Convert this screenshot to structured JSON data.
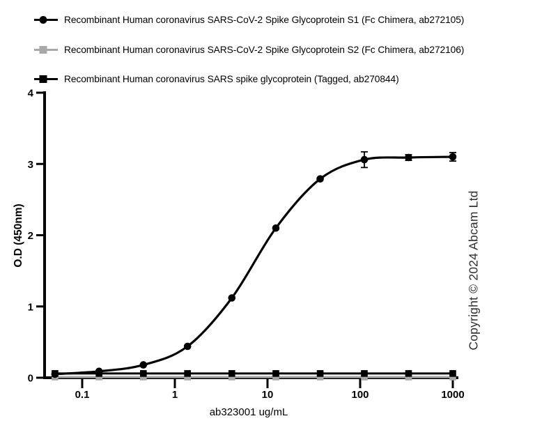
{
  "figure": {
    "copyright": "Copyright © 2024 Abcam Ltd"
  },
  "legend": {
    "items": [
      {
        "label": "Recombinant Human coronavirus SARS-CoV-2 Spike Glycoprotein S1 (Fc Chimera, ab272105)",
        "marker": "circle",
        "color": "#000000"
      },
      {
        "label": "Recombinant Human coronavirus SARS-CoV-2 Spike Glycoprotein S2 (Fc Chimera, ab272106)",
        "marker": "square",
        "color": "#a8a8a8"
      },
      {
        "label": "Recombinant Human coronavirus SARS spike glycoprotein (Tagged, ab270844)",
        "marker": "square",
        "color": "#000000"
      }
    ]
  },
  "chart_data": {
    "type": "line",
    "title": "",
    "xlabel": "ab323001 ug/mL",
    "ylabel": "O.D (450nm)",
    "x_scale": "log10",
    "xlim": [
      0.04,
      1100
    ],
    "ylim": [
      0,
      4
    ],
    "x_ticks": [
      0.1,
      1,
      10,
      100,
      1000
    ],
    "x_tick_labels": [
      "0.1",
      "1",
      "10",
      "100",
      "1000"
    ],
    "y_ticks": [
      0,
      1,
      2,
      3,
      4
    ],
    "grid": false,
    "legend_position": "top-left",
    "x": [
      0.0508,
      0.152,
      0.457,
      1.37,
      4.12,
      12.3,
      37,
      111,
      333,
      1000
    ],
    "series": [
      {
        "name": "Recombinant Human coronavirus SARS-CoV-2 Spike Glycoprotein S1 (Fc Chimera, ab272105)",
        "marker": "circle",
        "color": "#000000",
        "fit": "smooth",
        "values": [
          0.05,
          0.09,
          0.18,
          0.44,
          1.12,
          2.1,
          2.79,
          3.06,
          3.09,
          3.1
        ],
        "errors": [
          0,
          0,
          0,
          0,
          0,
          0,
          0,
          0.11,
          0.04,
          0.06
        ]
      },
      {
        "name": "Recombinant Human coronavirus SARS-CoV-2 Spike Glycoprotein S2 (Fc Chimera, ab272106)",
        "marker": "square",
        "color": "#a8a8a8",
        "fit": "linear",
        "values": [
          0.01,
          0.01,
          0.01,
          0.01,
          0.01,
          0.01,
          0.01,
          0.01,
          0.01,
          0.01
        ],
        "errors": [
          0,
          0,
          0,
          0,
          0,
          0,
          0,
          0,
          0,
          0
        ]
      },
      {
        "name": "Recombinant Human coronavirus SARS spike glycoprotein (Tagged, ab270844)",
        "marker": "square",
        "color": "#000000",
        "fit": "linear",
        "values": [
          0.06,
          0.06,
          0.06,
          0.06,
          0.06,
          0.06,
          0.06,
          0.06,
          0.06,
          0.06
        ],
        "errors": [
          0,
          0,
          0,
          0,
          0,
          0,
          0,
          0,
          0,
          0
        ]
      }
    ]
  }
}
